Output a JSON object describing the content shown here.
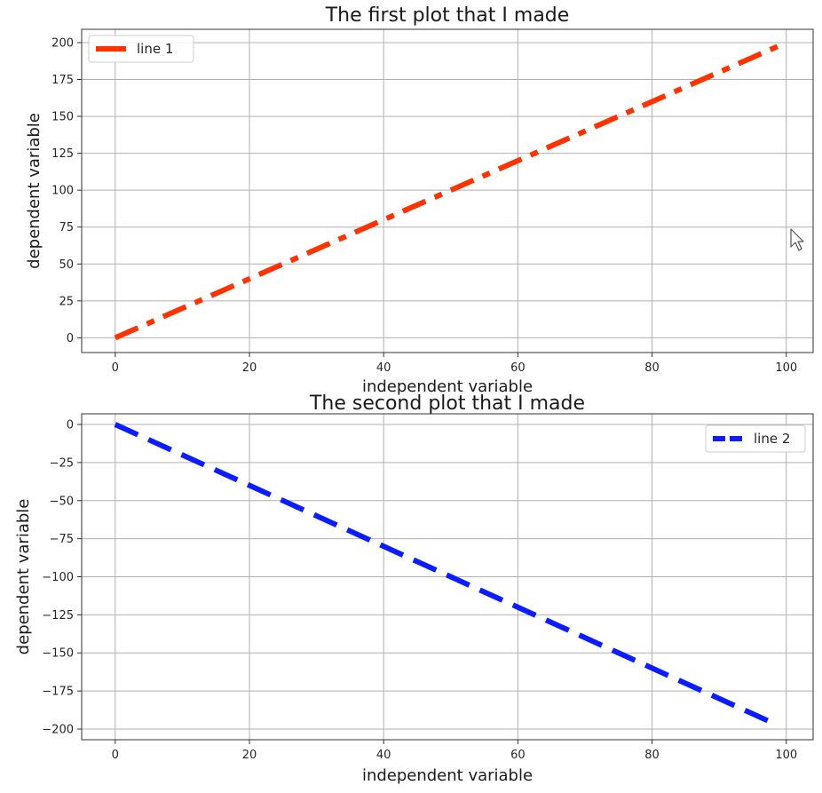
{
  "chart_data": [
    {
      "type": "line",
      "title": "The first plot that I made",
      "xlabel": "independent variable",
      "ylabel": "dependent variable",
      "xlim": [
        -5,
        104
      ],
      "ylim": [
        -10,
        209
      ],
      "xticks": [
        0,
        20,
        40,
        60,
        80,
        100
      ],
      "yticks": [
        0,
        25,
        50,
        75,
        100,
        125,
        150,
        175,
        200
      ],
      "grid": true,
      "legend_position": "upper left",
      "series": [
        {
          "name": "line 1",
          "color": "#ff3300",
          "linestyle": "dashdot",
          "x": [
            0,
            99
          ],
          "y": [
            0,
            198
          ]
        }
      ]
    },
    {
      "type": "line",
      "title": "The second plot that I made",
      "xlabel": "independent variable",
      "ylabel": "dependent variable",
      "xlim": [
        -5,
        104
      ],
      "ylim": [
        -207,
        7
      ],
      "xticks": [
        0,
        20,
        40,
        60,
        80,
        100
      ],
      "yticks": [
        0,
        -25,
        -50,
        -75,
        -100,
        -125,
        -150,
        -175,
        -200
      ],
      "grid": true,
      "legend_position": "upper right",
      "series": [
        {
          "name": "line 2",
          "color": "#0b1cff",
          "linestyle": "dashed",
          "x": [
            0,
            98
          ],
          "y": [
            0,
            -196
          ]
        }
      ]
    }
  ],
  "cursor_icon": "mouse-pointer-icon"
}
